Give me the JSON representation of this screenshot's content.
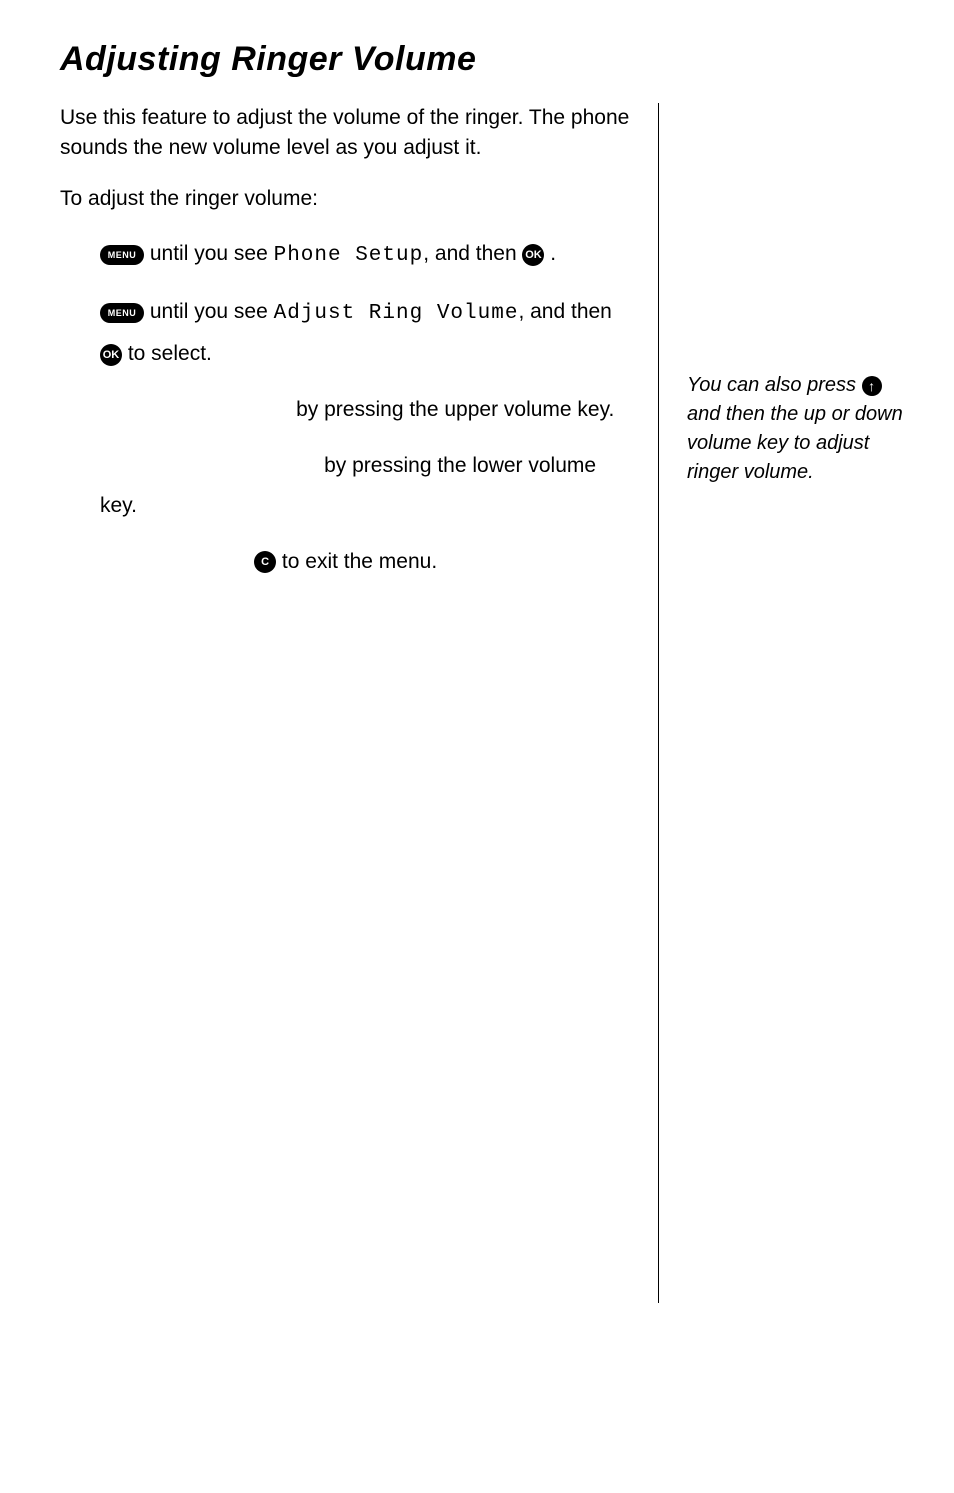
{
  "title": "Adjusting Ringer Volume",
  "intro": "Use this feature to adjust the volume of the ringer. The phone sounds the new volume level as you adjust it.",
  "lead": "To adjust the ringer volume:",
  "icons": {
    "menu": "MENU",
    "ok": "OK",
    "c": "C",
    "up": "↑"
  },
  "steps": {
    "s1a": " until you see ",
    "s1_lcd": "Phone Setup",
    "s1b": ", and then ",
    "s1c": " .",
    "s2a": " until you see ",
    "s2_lcd": "Adjust Ring Volume",
    "s2b": ", and then ",
    "s2c": " to select.",
    "s3a": "by pressing the upper volume key.",
    "s4a": "by pressing the lower volume key.",
    "s5a": " to exit the menu."
  },
  "sidenote": {
    "a": "You can also press ",
    "b": " and then the up or down volume key to adjust ringer volume."
  }
}
